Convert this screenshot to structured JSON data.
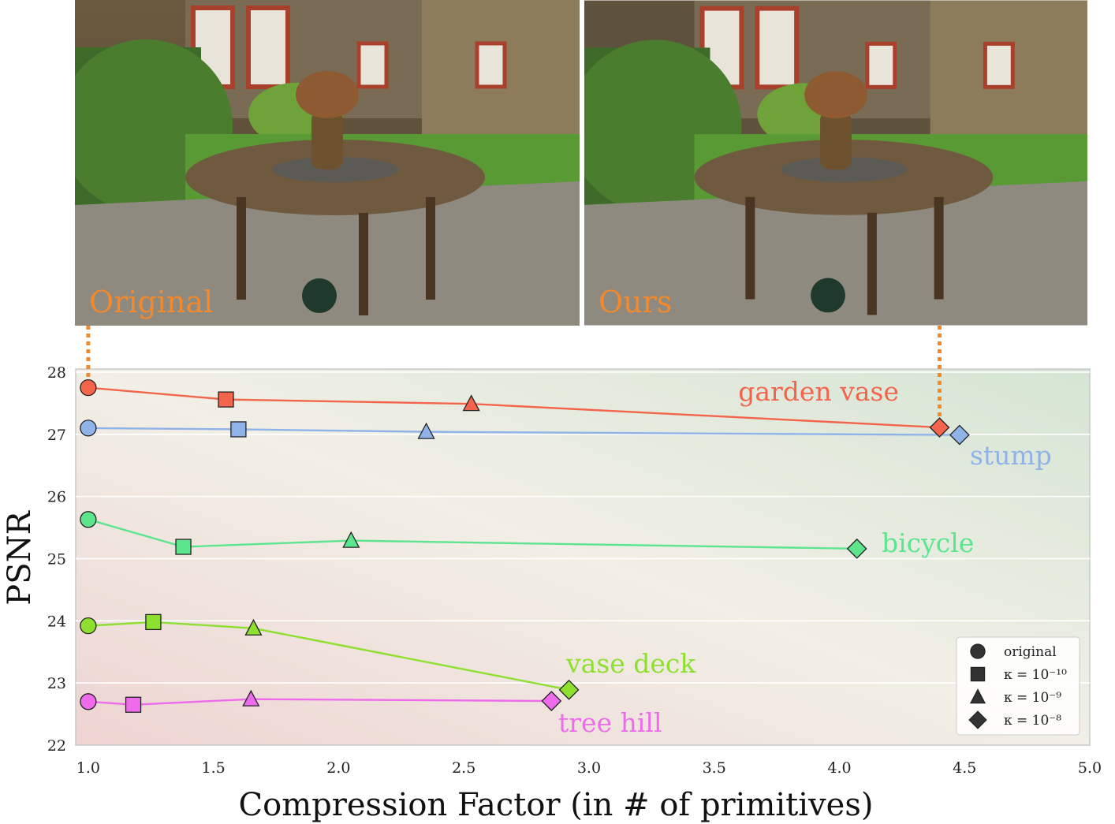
{
  "images": {
    "left_label": "Original",
    "right_label": "Ours",
    "label_color": "#f5892a"
  },
  "chart_data": {
    "type": "line",
    "title": "",
    "xlabel": "Compression Factor (in # of primitives)",
    "ylabel": "PSNR",
    "xlim": [
      0.95,
      5.0
    ],
    "ylim": [
      22,
      28.05
    ],
    "xticks": [
      "1.0",
      "1.5",
      "2.0",
      "2.5",
      "3.0",
      "3.5",
      "4.0",
      "4.5",
      "5.0"
    ],
    "yticks": [
      "22",
      "23",
      "24",
      "25",
      "26",
      "27",
      "28"
    ],
    "grid": true,
    "legend_position": "bottom-right",
    "markers": [
      "circle",
      "square",
      "triangle",
      "diamond"
    ],
    "legend": [
      "original",
      "κ = 10⁻¹⁰",
      "κ = 10⁻⁹",
      "κ = 10⁻⁸"
    ],
    "series": [
      {
        "name": "garden vase",
        "color": "#f2654c",
        "x": [
          1.0,
          1.55,
          2.53,
          4.4
        ],
        "y": [
          27.75,
          27.56,
          27.49,
          27.11
        ]
      },
      {
        "name": "stump",
        "color": "#8fb2e8",
        "x": [
          1.0,
          1.6,
          2.35,
          4.48
        ],
        "y": [
          27.1,
          27.08,
          27.04,
          26.99
        ]
      },
      {
        "name": "bicycle",
        "color": "#5de58e",
        "x": [
          1.0,
          1.38,
          2.05,
          4.07
        ],
        "y": [
          25.63,
          25.19,
          25.29,
          25.16
        ]
      },
      {
        "name": "vase deck",
        "color": "#8ee030",
        "x": [
          1.0,
          1.26,
          1.66,
          2.92
        ],
        "y": [
          23.92,
          23.98,
          23.88,
          22.89
        ]
      },
      {
        "name": "tree hill",
        "color": "#ee6cec",
        "x": [
          1.0,
          1.18,
          1.65,
          2.85
        ],
        "y": [
          22.7,
          22.65,
          22.74,
          22.71
        ]
      }
    ],
    "annotations": [
      {
        "from_image": "Original",
        "to_point": [
          1.0,
          27.75
        ],
        "style": "dotted",
        "color": "#f5892a"
      },
      {
        "from_image": "Ours",
        "to_point": [
          4.4,
          27.11
        ],
        "style": "dotted",
        "color": "#f5892a"
      }
    ]
  }
}
